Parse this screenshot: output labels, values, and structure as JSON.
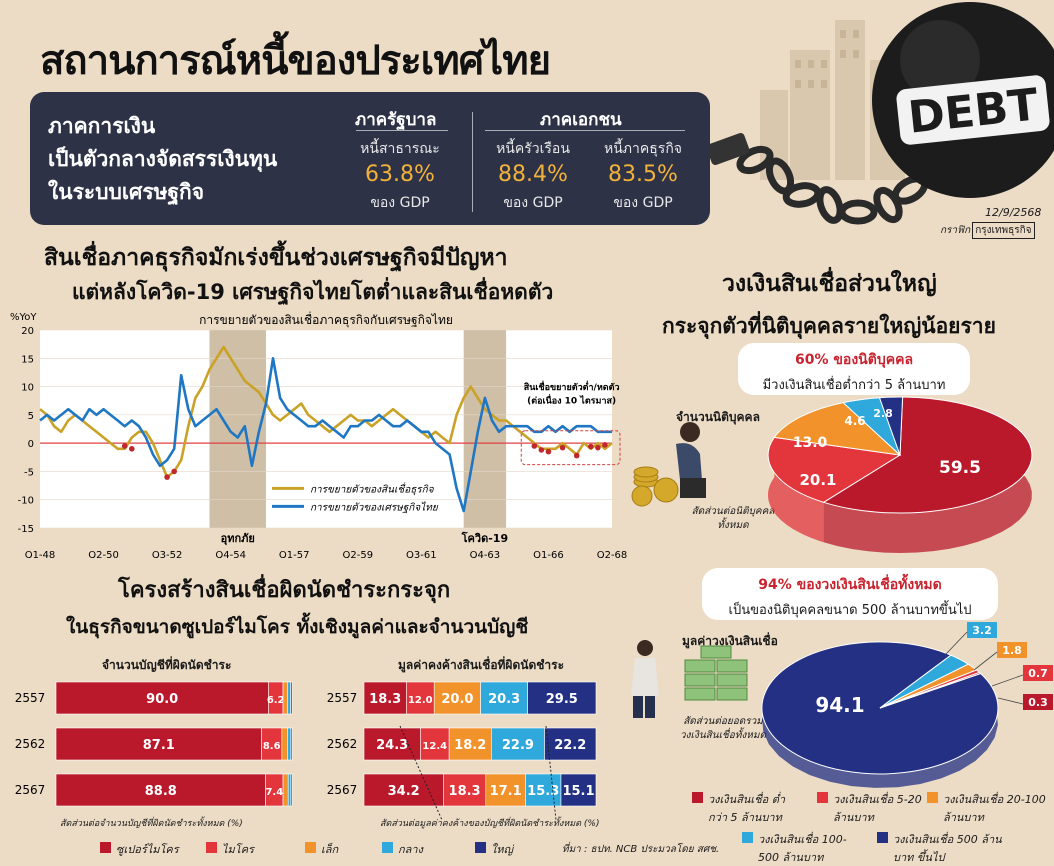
{
  "title": "สถานการณ์หนี้ของประเทศไทย",
  "date": "12/9/2568",
  "credit": {
    "prefix": "กราฟิก",
    "name": "กรุงเทพธุรกิจ"
  },
  "debt_label": "DEBT",
  "summary": {
    "lead": [
      "ภาคการเงิน",
      "เป็นตัวกลางจัดสรรเงินทุน",
      "ในระบบเศรษฐกิจ"
    ],
    "gov_title": "ภาครัฐบาล",
    "private_title": "ภาคเอกชน",
    "items": [
      {
        "label": "หนี้สาธารณะ",
        "value": "63.8%",
        "unit": "ของ GDP"
      },
      {
        "label": "หนี้ครัวเรือน",
        "value": "88.4%",
        "unit": "ของ GDP"
      },
      {
        "label": "หนี้ภาคธุรกิจ",
        "value": "83.5%",
        "unit": "ของ GDP"
      }
    ]
  },
  "section1": {
    "heading1": "สินเชื่อภาคธุรกิจมักเร่งขึ้นช่วงเศรษฐกิจมีปัญหา",
    "heading2": "แต่หลังโควิด-19 เศรษฐกิจไทยโตต่ำและสินเชื่อหดตัว"
  },
  "section2": {
    "heading1": "วงเงินสินเชื่อส่วนใหญ่",
    "heading2": "กระจุกตัวที่นิติบุคคลรายใหญ่น้อยราย"
  },
  "section3": {
    "heading1": "โครงสร้างสินเชื่อผิดนัดชำระกระจุก",
    "heading2": "ในธุรกิจขนาดซูเปอร์ไมโคร ทั้งเชิงมูลค่าและจำนวนบัญชี"
  },
  "pie1_callout": {
    "line1": "60% ของนิติบุคคล",
    "line2": "มีวงเงินสินเชื่อต่ำกว่า 5 ล้านบาท"
  },
  "pie2_callout": {
    "line1": "94% ของวงเงินสินเชื่อทั้งหมด",
    "line2": "เป็นของนิติบุคคลขนาด 500 ล้านบาทขึ้นไป"
  },
  "pie_legend": [
    {
      "label": "วงเงินสินเชื่อ ต่ำกว่า 5 ล้านบาท",
      "color": "#b9192b"
    },
    {
      "label": "วงเงินสินเชื่อ 5-20 ล้านบาท",
      "color": "#e2363c"
    },
    {
      "label": "วงเงินสินเชื่อ 20-100 ล้านบาท",
      "color": "#f2922a"
    },
    {
      "label": "วงเงินสินเชื่อ 100-500 ล้านบาท",
      "color": "#2fa8dc"
    },
    {
      "label": "วงเงินสินเชื่อ 500 ล้านบาท ขึ้นไป",
      "color": "#233083"
    }
  ],
  "bar_legend": [
    {
      "label": "ซูเปอร์ไมโคร",
      "color": "#b9192b"
    },
    {
      "label": "ไมโคร",
      "color": "#e2363c"
    },
    {
      "label": "เล็ก",
      "color": "#f2922a"
    },
    {
      "label": "กลาง",
      "color": "#2fa8dc"
    },
    {
      "label": "ใหญ่",
      "color": "#233083"
    }
  ],
  "source": "ที่มา : ธปท. NCB ประมวลโดย สศช.",
  "chart_data": [
    {
      "type": "line",
      "title": "การขยายตัวของสินเชื่อภาคธุรกิจกับเศรษฐกิจไทย",
      "ylabel": "%YoY",
      "ylim": [
        -15,
        20
      ],
      "yticks": [
        20,
        15,
        10,
        5,
        0,
        -5,
        -10,
        -15
      ],
      "xtick_labels": [
        "Q1-48",
        "Q2-50",
        "Q3-52",
        "Q4-54",
        "Q1-57",
        "Q2-59",
        "Q3-61",
        "Q4-63",
        "Q1-66",
        "Q2-68"
      ],
      "shaded_periods": [
        {
          "label": "อุทกภัย",
          "from": 24,
          "to": 32
        },
        {
          "label": "โควิด-19",
          "from": 60,
          "to": 66
        }
      ],
      "annotation": "สินเชื่อขยายตัวต่ำ/หดตัว (ต่อเนื่อง 10 ไตรมาส)",
      "series": [
        {
          "name": "การขยายตัวของสินเชื่อธุรกิจ",
          "color": "#c9a227",
          "values": [
            6,
            5,
            3,
            2,
            4,
            5,
            4,
            3,
            2,
            1,
            0,
            -1,
            -1,
            1,
            2,
            2,
            0,
            -3,
            -6,
            -5,
            -3,
            3,
            8,
            10,
            13,
            15,
            17,
            15,
            13,
            11,
            10,
            9,
            7,
            5,
            4,
            5,
            6,
            7,
            5,
            4,
            3,
            2,
            3,
            4,
            5,
            4,
            4,
            3,
            4,
            5,
            6,
            5,
            4,
            3,
            2,
            1,
            2,
            1,
            0,
            5,
            8,
            10,
            8,
            6,
            5,
            4,
            4,
            3,
            2,
            1,
            0,
            -1,
            -1,
            -1,
            0,
            -1,
            -2,
            0,
            -1,
            0,
            -1,
            0
          ]
        },
        {
          "name": "การขยายตัวของเศรษฐกิจไทย",
          "color": "#1f77c4",
          "values": [
            4,
            5,
            4,
            5,
            6,
            5,
            4,
            6,
            5,
            6,
            5,
            4,
            3,
            4,
            3,
            1,
            -2,
            -4,
            -3,
            -1,
            12,
            6,
            3,
            4,
            5,
            6,
            4,
            2,
            1,
            3,
            -4,
            2,
            7,
            15,
            8,
            6,
            5,
            4,
            3,
            3,
            4,
            3,
            2,
            1,
            3,
            3,
            4,
            4,
            5,
            4,
            3,
            3,
            4,
            3,
            2,
            2,
            0,
            -1,
            -2,
            -8,
            -12,
            -5,
            2,
            8,
            4,
            2,
            3,
            3,
            3,
            3,
            2,
            2,
            3,
            2,
            3,
            2,
            3,
            3,
            3,
            2,
            2,
            2
          ]
        }
      ],
      "negative_points": [
        {
          "x": 12,
          "y": -0.5
        },
        {
          "x": 13,
          "y": -1
        },
        {
          "x": 18,
          "y": -6
        },
        {
          "x": 19,
          "y": -5
        },
        {
          "x": 70,
          "y": -0.5
        },
        {
          "x": 71,
          "y": -1.2
        },
        {
          "x": 72,
          "y": -1.5
        },
        {
          "x": 74,
          "y": -0.8
        },
        {
          "x": 76,
          "y": -2.2
        },
        {
          "x": 78,
          "y": -0.6
        },
        {
          "x": 79,
          "y": -0.8
        },
        {
          "x": 80,
          "y": -0.3
        }
      ]
    },
    {
      "type": "pie",
      "title": "จำนวนนิติบุคคล",
      "note": "สัดส่วนต่อนิติบุคคลทั้งหมด",
      "categories": [
        "ต่ำกว่า 5 ล้านบาท",
        "5-20 ล้านบาท",
        "20-100 ล้านบาท",
        "100-500 ล้านบาท",
        "500 ล้านบาท ขึ้นไป"
      ],
      "values": [
        59.5,
        20.1,
        13.0,
        4.6,
        2.8
      ],
      "labels": [
        "59.5",
        "20.1",
        "13.0",
        "4.6",
        "2.8"
      ],
      "colors": [
        "#b9192b",
        "#e2363c",
        "#f2922a",
        "#2fa8dc",
        "#233083"
      ]
    },
    {
      "type": "pie",
      "title": "มูลค่าวงเงินสินเชื่อ",
      "note": "สัดส่วนต่อยอดรวม วงเงินสินเชื่อทั้งหมด",
      "categories": [
        "500 ล้านบาท ขึ้นไป",
        "100-500 ล้านบาท",
        "20-100 ล้านบาท",
        "5-20 ล้านบาท",
        "ต่ำกว่า 5 ล้านบาท"
      ],
      "values": [
        94.1,
        3.2,
        1.8,
        0.7,
        0.3
      ],
      "labels": [
        "94.1",
        "3.2",
        "1.8",
        "0.7",
        "0.3"
      ],
      "colors": [
        "#233083",
        "#2fa8dc",
        "#f2922a",
        "#e2363c",
        "#b9192b"
      ]
    },
    {
      "type": "bar",
      "title": "จำนวนบัญชีที่ผิดนัดชำระ",
      "note": "สัดส่วนต่อจำนวนบัญชีที่ผิดนัดชำระทั้งหมด (%)",
      "categories": [
        "2557",
        "2562",
        "2567"
      ],
      "stacked": true,
      "series": [
        {
          "name": "ซูเปอร์ไมโคร",
          "values": [
            90.0,
            87.1,
            88.8
          ],
          "labels": [
            "90.0",
            "87.1",
            "88.8"
          ]
        },
        {
          "name": "ไมโคร",
          "values": [
            6.2,
            8.6,
            7.4
          ],
          "labels": [
            "6.2",
            "8.6",
            "7.4"
          ]
        },
        {
          "name": "เล็ก",
          "values": [
            2.0,
            2.5,
            2.2
          ],
          "labels": [
            "",
            "",
            ""
          ]
        },
        {
          "name": "กลาง",
          "values": [
            1.2,
            1.3,
            1.1
          ],
          "labels": [
            "",
            "",
            ""
          ]
        },
        {
          "name": "ใหญ่",
          "values": [
            0.6,
            0.5,
            0.5
          ],
          "labels": [
            "",
            "",
            ""
          ]
        }
      ]
    },
    {
      "type": "bar",
      "title": "มูลค่าคงค้างสินเชื่อที่ผิดนัดชำระ",
      "note": "สัดส่วนต่อมูลค่าคงค้างของบัญชีที่ผิดนัดชำระทั้งหมด (%)",
      "categories": [
        "2557",
        "2562",
        "2567"
      ],
      "stacked": true,
      "series": [
        {
          "name": "ซูเปอร์ไมโคร",
          "values": [
            18.3,
            24.3,
            34.2
          ],
          "labels": [
            "18.3",
            "24.3",
            "34.2"
          ]
        },
        {
          "name": "ไมโคร",
          "values": [
            12.0,
            12.4,
            18.3
          ],
          "labels": [
            "12.0",
            "12.4",
            "18.3"
          ]
        },
        {
          "name": "เล็ก",
          "values": [
            20.0,
            18.2,
            17.1
          ],
          "labels": [
            "20.0",
            "18.2",
            "17.1"
          ]
        },
        {
          "name": "กลาง",
          "values": [
            20.3,
            22.9,
            15.3
          ],
          "labels": [
            "20.3",
            "22.9",
            "15.3"
          ]
        },
        {
          "name": "ใหญ่",
          "values": [
            29.5,
            22.2,
            15.1
          ],
          "labels": [
            "29.5",
            "22.2",
            "15.1"
          ]
        }
      ]
    }
  ]
}
